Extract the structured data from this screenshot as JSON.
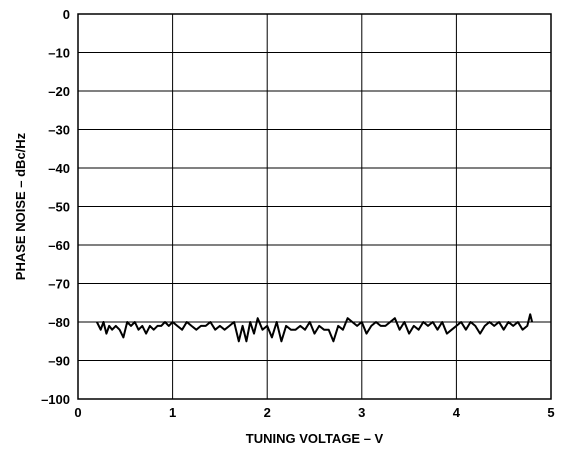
{
  "chart_data": {
    "type": "line",
    "title": "",
    "xlabel": "TUNING VOLTAGE – V",
    "ylabel": "PHASE NOISE – dBc/Hz",
    "xlim": [
      0,
      5
    ],
    "ylim": [
      -100,
      0
    ],
    "grid": true,
    "legend": "none",
    "colors": {
      "line": "#000000",
      "grid": "#000000",
      "background": "#ffffff"
    },
    "x_ticks": [
      {
        "value": 0,
        "label": "0"
      },
      {
        "value": 1,
        "label": "1"
      },
      {
        "value": 2,
        "label": "2"
      },
      {
        "value": 3,
        "label": "3"
      },
      {
        "value": 4,
        "label": "4"
      },
      {
        "value": 5,
        "label": "5"
      }
    ],
    "y_ticks": [
      {
        "value": 0,
        "label": "0"
      },
      {
        "value": -10,
        "label": "–10"
      },
      {
        "value": -20,
        "label": "–20"
      },
      {
        "value": -30,
        "label": "–30"
      },
      {
        "value": -40,
        "label": "–40"
      },
      {
        "value": -50,
        "label": "–50"
      },
      {
        "value": -60,
        "label": "–60"
      },
      {
        "value": -70,
        "label": "–70"
      },
      {
        "value": -80,
        "label": "–80"
      },
      {
        "value": -90,
        "label": "–90"
      },
      {
        "value": -100,
        "label": "–100"
      }
    ],
    "series": [
      {
        "x": [
          0.2,
          0.24,
          0.27,
          0.3,
          0.33,
          0.36,
          0.4,
          0.44,
          0.48,
          0.52,
          0.56,
          0.6,
          0.64,
          0.68,
          0.72,
          0.76,
          0.8,
          0.84,
          0.88,
          0.92,
          0.96,
          1.0,
          1.05,
          1.1,
          1.15,
          1.2,
          1.25,
          1.3,
          1.35,
          1.4,
          1.45,
          1.5,
          1.55,
          1.6,
          1.65,
          1.7,
          1.74,
          1.78,
          1.82,
          1.86,
          1.9,
          1.95,
          2.0,
          2.05,
          2.1,
          2.15,
          2.2,
          2.25,
          2.3,
          2.35,
          2.4,
          2.45,
          2.5,
          2.55,
          2.6,
          2.65,
          2.7,
          2.75,
          2.8,
          2.85,
          2.9,
          2.95,
          3.0,
          3.05,
          3.1,
          3.15,
          3.2,
          3.25,
          3.3,
          3.35,
          3.4,
          3.45,
          3.5,
          3.55,
          3.6,
          3.65,
          3.7,
          3.75,
          3.8,
          3.85,
          3.9,
          3.95,
          4.0,
          4.05,
          4.1,
          4.15,
          4.2,
          4.25,
          4.3,
          4.35,
          4.4,
          4.45,
          4.5,
          4.55,
          4.6,
          4.65,
          4.7,
          4.75,
          4.78,
          4.8
        ],
        "y": [
          -80,
          -82,
          -80,
          -83,
          -81,
          -82,
          -81,
          -82,
          -84,
          -80,
          -81,
          -80,
          -82,
          -81,
          -83,
          -81,
          -82,
          -81,
          -81,
          -80,
          -81,
          -80,
          -81,
          -82,
          -80,
          -81,
          -82,
          -81,
          -81,
          -80,
          -82,
          -81,
          -82,
          -81,
          -80,
          -85,
          -81,
          -85,
          -80,
          -83,
          -79,
          -82,
          -81,
          -84,
          -80,
          -85,
          -81,
          -82,
          -82,
          -81,
          -82,
          -80,
          -83,
          -81,
          -82,
          -82,
          -85,
          -81,
          -82,
          -79,
          -80,
          -81,
          -80,
          -83,
          -81,
          -80,
          -81,
          -81,
          -80,
          -79,
          -82,
          -80,
          -83,
          -81,
          -82,
          -80,
          -81,
          -80,
          -82,
          -80,
          -83,
          -82,
          -81,
          -80,
          -82,
          -80,
          -81,
          -83,
          -81,
          -80,
          -81,
          -80,
          -82,
          -80,
          -81,
          -80,
          -82,
          -81,
          -78,
          -80
        ]
      }
    ]
  }
}
